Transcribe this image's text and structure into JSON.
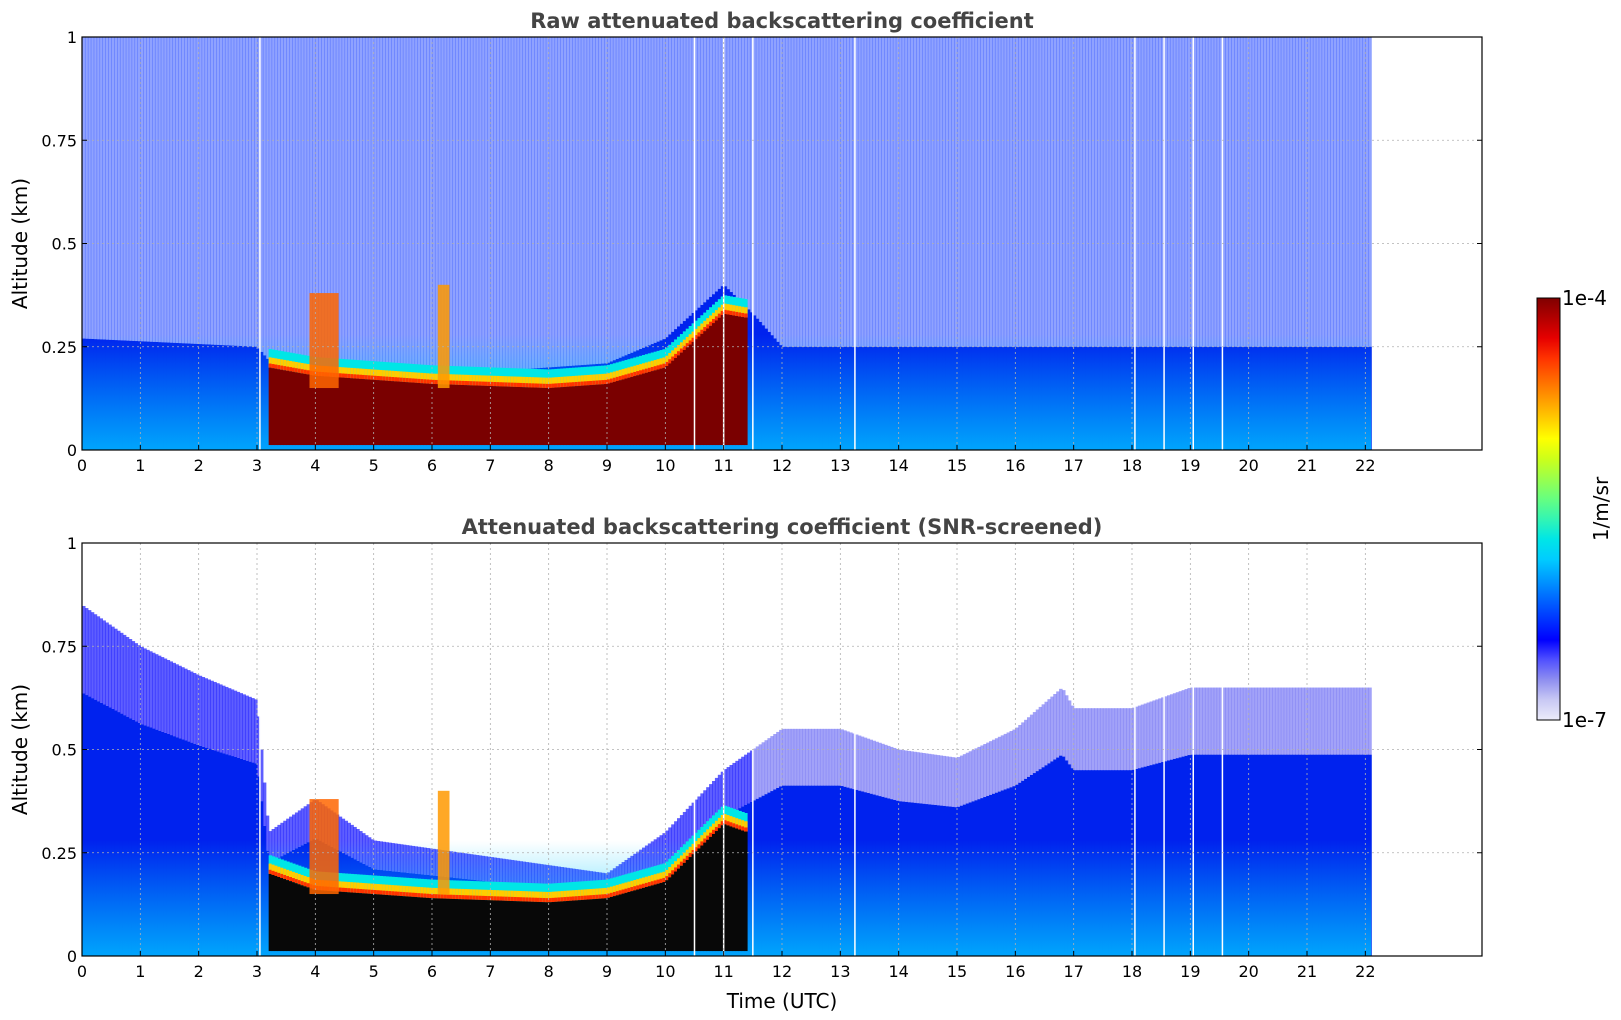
{
  "figure": {
    "colorbar": {
      "label": "1/m/sr",
      "tick_max": "1e-4",
      "tick_min": "1e-7",
      "colormap": [
        "#ececfa",
        "#c8c8f4",
        "#8f8ff0",
        "#5050ff",
        "#0000ff",
        "#0033ff",
        "#0066ff",
        "#0099ff",
        "#00ccff",
        "#00e6e6",
        "#33f5b3",
        "#66ff80",
        "#99ff4d",
        "#ccff1a",
        "#ffff00",
        "#ffcc00",
        "#ff9900",
        "#ff6600",
        "#ff3300",
        "#e60000",
        "#b30000",
        "#800000"
      ]
    }
  },
  "chart_data": [
    {
      "type": "heatmap",
      "title": "Raw attenuated backscattering coefficient",
      "xlabel": "",
      "ylabel": "Altitude (km)",
      "xlim": [
        0,
        24
      ],
      "ylim": [
        0,
        1
      ],
      "x_ticks": [
        "0",
        "1",
        "2",
        "3",
        "4",
        "5",
        "6",
        "7",
        "8",
        "9",
        "10",
        "11",
        "12",
        "13",
        "14",
        "15",
        "16",
        "17",
        "18",
        "19",
        "20",
        "21",
        "22"
      ],
      "y_ticks": [
        "0",
        "0.25",
        "0.5",
        "0.75",
        "1"
      ],
      "grid": true,
      "data_time_range": [
        0,
        22.1
      ],
      "colorscale": "log",
      "color_range": [
        1e-07,
        0.0001
      ],
      "features": {
        "boundary_layer_top_km": [
          [
            0,
            0.27
          ],
          [
            3,
            0.25
          ],
          [
            3.3,
            0.2
          ],
          [
            4,
            0.18
          ],
          [
            5,
            0.2
          ],
          [
            7,
            0.19
          ],
          [
            8,
            0.2
          ],
          [
            9,
            0.21
          ],
          [
            10,
            0.27
          ],
          [
            11,
            0.4
          ],
          [
            11.5,
            0.33
          ],
          [
            12,
            0.25
          ],
          [
            22,
            0.25
          ]
        ],
        "fog_layer_top_km": [
          [
            3.2,
            0.2
          ],
          [
            4,
            0.18
          ],
          [
            6,
            0.16
          ],
          [
            8,
            0.15
          ],
          [
            9,
            0.16
          ],
          [
            10,
            0.2
          ],
          [
            11,
            0.33
          ],
          [
            11.4,
            0.32
          ]
        ],
        "fog_plume": {
          "time": [
            3.9,
            4.4
          ],
          "top_km": 0.38
        },
        "fog_spike": {
          "time": [
            6.1,
            6.3
          ],
          "top_km": 0.4
        },
        "signal_gaps_utc": [
          3.05,
          10.5,
          11.0,
          11.5,
          13.25,
          18.05,
          18.55,
          19.05,
          19.55
        ]
      }
    },
    {
      "type": "heatmap",
      "title": "Attenuated backscattering coefficient (SNR-screened)",
      "xlabel": "Time (UTC)",
      "ylabel": "Altitude (km)",
      "xlim": [
        0,
        24
      ],
      "ylim": [
        0,
        1
      ],
      "x_ticks": [
        "0",
        "1",
        "2",
        "3",
        "4",
        "5",
        "6",
        "7",
        "8",
        "9",
        "10",
        "11",
        "12",
        "13",
        "14",
        "15",
        "16",
        "17",
        "18",
        "19",
        "20",
        "21",
        "22"
      ],
      "y_ticks": [
        "0",
        "0.25",
        "0.5",
        "0.75",
        "1"
      ],
      "grid": true,
      "data_time_range": [
        0,
        22.1
      ],
      "colorscale": "log",
      "color_range": [
        1e-07,
        0.0001
      ],
      "features": {
        "screened_signal_top_km": [
          [
            0,
            0.85
          ],
          [
            1,
            0.75
          ],
          [
            2,
            0.68
          ],
          [
            3,
            0.62
          ],
          [
            3.2,
            0.3
          ],
          [
            4,
            0.38
          ],
          [
            5,
            0.28
          ],
          [
            7,
            0.24
          ],
          [
            9,
            0.2
          ],
          [
            10,
            0.3
          ],
          [
            11,
            0.45
          ],
          [
            12,
            0.55
          ],
          [
            13,
            0.55
          ],
          [
            14,
            0.5
          ],
          [
            15,
            0.48
          ],
          [
            16,
            0.55
          ],
          [
            16.8,
            0.65
          ],
          [
            17,
            0.6
          ],
          [
            18,
            0.6
          ],
          [
            19,
            0.65
          ],
          [
            20,
            0.65
          ],
          [
            21,
            0.65
          ],
          [
            22,
            0.65
          ]
        ],
        "saturated_fog_top_km": [
          [
            3.2,
            0.2
          ],
          [
            4,
            0.16
          ],
          [
            6,
            0.14
          ],
          [
            8,
            0.13
          ],
          [
            9,
            0.14
          ],
          [
            10,
            0.18
          ],
          [
            11,
            0.32
          ],
          [
            11.4,
            0.3
          ]
        ]
      }
    }
  ]
}
